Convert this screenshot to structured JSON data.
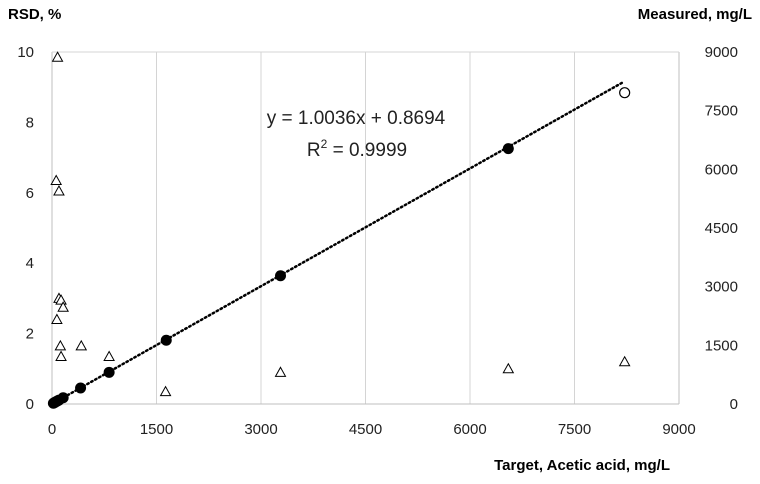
{
  "chart_data": {
    "type": "scatter",
    "x": {
      "label": "Target, Acetic acid,  mg/L",
      "range": [
        0,
        9000
      ],
      "ticks": [
        0,
        1500,
        3000,
        4500,
        6000,
        7500,
        9000
      ],
      "tick_labels": [
        "0",
        "1500",
        "3000",
        "4500",
        "6000",
        "7500",
        "9000"
      ]
    },
    "y_left": {
      "label": "RSD, %",
      "range": [
        0,
        10
      ],
      "ticks": [
        0,
        2,
        4,
        6,
        8,
        10
      ],
      "tick_labels": [
        "0",
        "2",
        "4",
        "6",
        "8",
        "10"
      ]
    },
    "y_right": {
      "label": "Measured, mg/L",
      "range": [
        0,
        9000
      ],
      "ticks": [
        0,
        1500,
        3000,
        4500,
        6000,
        7500,
        9000
      ],
      "tick_labels": [
        "0",
        "1500",
        "3000",
        "4500",
        "6000",
        "7500",
        "9000"
      ]
    },
    "grid": "vertical",
    "series": [
      {
        "marker": "open-triangle",
        "axis": "left",
        "points": [
          {
            "x": 80,
            "y": 9.85
          },
          {
            "x": 60,
            "y": 6.35
          },
          {
            "x": 100,
            "y": 6.05
          },
          {
            "x": 100,
            "y": 3.0
          },
          {
            "x": 130,
            "y": 2.95
          },
          {
            "x": 160,
            "y": 2.75
          },
          {
            "x": 70,
            "y": 2.4
          },
          {
            "x": 120,
            "y": 1.65
          },
          {
            "x": 420,
            "y": 1.65
          },
          {
            "x": 820,
            "y": 1.35
          },
          {
            "x": 130,
            "y": 1.35
          },
          {
            "x": 1630,
            "y": 0.35
          },
          {
            "x": 3280,
            "y": 0.9
          },
          {
            "x": 6550,
            "y": 1.0
          },
          {
            "x": 8220,
            "y": 1.2
          }
        ]
      },
      {
        "marker": "filled-circle",
        "axis": "right",
        "points": [
          {
            "x": 20,
            "y": 20
          },
          {
            "x": 40,
            "y": 40
          },
          {
            "x": 60,
            "y": 60
          },
          {
            "x": 80,
            "y": 80
          },
          {
            "x": 100,
            "y": 100
          },
          {
            "x": 160,
            "y": 160
          },
          {
            "x": 410,
            "y": 410
          },
          {
            "x": 820,
            "y": 810
          },
          {
            "x": 1640,
            "y": 1630
          },
          {
            "x": 3280,
            "y": 3280
          },
          {
            "x": 6550,
            "y": 6530
          }
        ]
      },
      {
        "marker": "open-circle",
        "axis": "right",
        "points": [
          {
            "x": 8220,
            "y": 7960
          }
        ]
      }
    ],
    "trendline": {
      "style": "dotted",
      "axis": "right",
      "slope": 1.0036,
      "intercept": 0.8694,
      "x_range": [
        0,
        8200
      ]
    },
    "annotations": {
      "equation": "y = 1.0036x + 0.8694",
      "r2_prefix": "R",
      "r2_sup": "2",
      "r2_suffix": " = 0.9999"
    }
  }
}
